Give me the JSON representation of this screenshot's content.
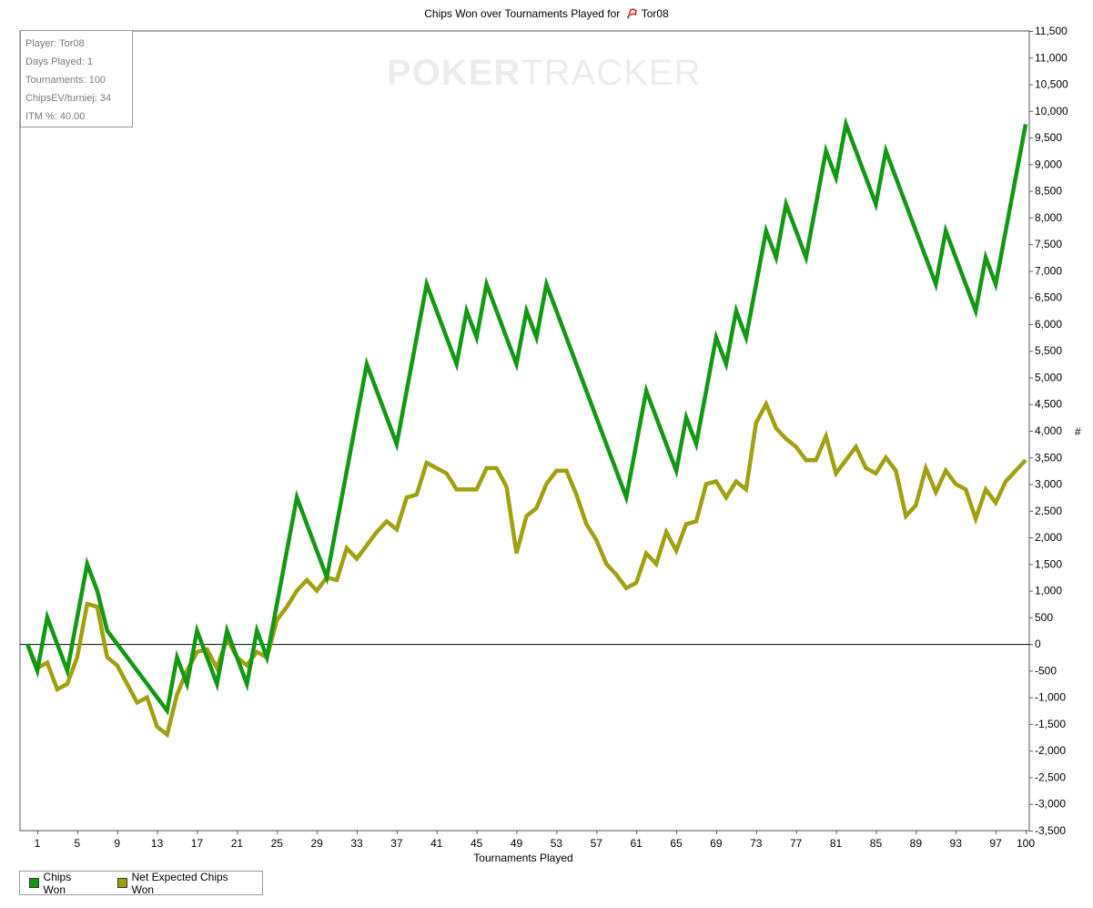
{
  "title": {
    "prefix": "Chips Won over Tournaments Played for",
    "player": "Tor08"
  },
  "stats": [
    "Player: Tor08",
    "Days Played: 1",
    "Tournaments: 100",
    "ChipsEV/turniej: 34",
    "ITM %: 40.00"
  ],
  "watermark": {
    "part1": "POKER",
    "part2": "TRACKER"
  },
  "colors": {
    "chips_won": "#119911",
    "net_expected": "#a0a010",
    "grid": "#e8e8e8",
    "zero_line": "#000000"
  },
  "chart_data": {
    "type": "line",
    "title": "Chips Won over Tournaments Played for Tor08",
    "xlabel": "Tournaments Played",
    "ylabel": "#",
    "xlim": [
      0,
      100
    ],
    "ylim": [
      -3500,
      11500
    ],
    "y_ticks": [
      -3500,
      -3000,
      -2500,
      -2000,
      -1500,
      -1000,
      -500,
      0,
      500,
      1000,
      1500,
      2000,
      2500,
      3000,
      3500,
      4000,
      4500,
      5000,
      5500,
      6000,
      6500,
      7000,
      7500,
      8000,
      8500,
      9000,
      9500,
      10000,
      10500,
      11000,
      11500
    ],
    "y_tick_labels": [
      "-3,500",
      "-3,000",
      "-2,500",
      "-2,000",
      "-1,500",
      "-1,000",
      "-500",
      "0",
      "500",
      "1,000",
      "1,500",
      "2,000",
      "2,500",
      "3,000",
      "3,500",
      "4,000",
      "4,500",
      "5,000",
      "5,500",
      "6,000",
      "6,500",
      "7,000",
      "7,500",
      "8,000",
      "8,500",
      "9,000",
      "9,500",
      "10,000",
      "10,500",
      "11,000",
      "11,500"
    ],
    "x_ticks": [
      1,
      5,
      9,
      13,
      17,
      21,
      25,
      29,
      33,
      37,
      41,
      45,
      49,
      53,
      57,
      61,
      65,
      69,
      73,
      77,
      81,
      85,
      89,
      93,
      97,
      100
    ],
    "grid": true,
    "legend": "bottom-left",
    "series": [
      {
        "name": "Chips Won",
        "x": [
          0,
          1,
          2,
          4,
          6,
          7,
          8,
          14,
          15,
          16,
          17,
          18,
          19,
          20,
          21,
          22,
          23,
          24,
          27,
          30,
          34,
          37,
          40,
          43,
          44,
          45,
          46,
          49,
          50,
          51,
          52,
          60,
          62,
          65,
          66,
          67,
          69,
          70,
          71,
          72,
          74,
          75,
          76,
          78,
          80,
          81,
          82,
          85,
          86,
          91,
          92,
          95,
          96,
          97,
          100
        ],
        "values": [
          0,
          -500,
          500,
          -500,
          1500,
          1000,
          250,
          -1250,
          -250,
          -750,
          250,
          -250,
          -750,
          250,
          -250,
          -750,
          250,
          -250,
          2750,
          1250,
          5250,
          3750,
          6750,
          5250,
          6250,
          5750,
          6750,
          5250,
          6250,
          5750,
          6750,
          2750,
          4750,
          3250,
          4250,
          3750,
          5750,
          5250,
          6250,
          5750,
          7750,
          7250,
          8250,
          7250,
          9250,
          8750,
          9750,
          8250,
          9250,
          6750,
          7750,
          6250,
          7250,
          6750,
          9750
        ]
      },
      {
        "name": "Net Expected Chips Won",
        "x": [
          0,
          1,
          2,
          3,
          4,
          5,
          6,
          7,
          8,
          9,
          10,
          11,
          12,
          13,
          14,
          15,
          16,
          17,
          18,
          19,
          20,
          21,
          22,
          23,
          24,
          25,
          26,
          27,
          28,
          29,
          30,
          31,
          32,
          33,
          34,
          35,
          36,
          37,
          38,
          39,
          40,
          41,
          42,
          43,
          44,
          45,
          46,
          47,
          48,
          49,
          50,
          51,
          52,
          53,
          54,
          55,
          56,
          57,
          58,
          59,
          60,
          61,
          62,
          63,
          64,
          65,
          66,
          67,
          68,
          69,
          70,
          71,
          72,
          73,
          74,
          75,
          76,
          77,
          78,
          79,
          80,
          81,
          82,
          83,
          84,
          85,
          86,
          87,
          88,
          89,
          90,
          91,
          92,
          93,
          94,
          95,
          96,
          97,
          98,
          99,
          100
        ],
        "values": [
          0,
          -450,
          -350,
          -850,
          -750,
          -250,
          750,
          700,
          -250,
          -400,
          -750,
          -1100,
          -1000,
          -1550,
          -1700,
          -950,
          -500,
          -150,
          -100,
          -450,
          100,
          -250,
          -400,
          -150,
          -250,
          450,
          700,
          1000,
          1200,
          1000,
          1250,
          1200,
          1800,
          1600,
          1850,
          2100,
          2300,
          2150,
          2750,
          2800,
          3400,
          3300,
          3200,
          2900,
          2900,
          2900,
          3300,
          3300,
          2950,
          1700,
          2400,
          2550,
          3000,
          3250,
          3250,
          2800,
          2250,
          1950,
          1500,
          1300,
          1050,
          1150,
          1700,
          1500,
          2100,
          1750,
          2250,
          2300,
          3000,
          3050,
          2750,
          3050,
          2900,
          4150,
          4500,
          4050,
          3850,
          3700,
          3450,
          3450,
          3900,
          3200,
          3450,
          3700,
          3300,
          3200,
          3500,
          3250,
          2400,
          2600,
          3300,
          2850,
          3250,
          3000,
          2900,
          2350,
          2900,
          2650,
          3050,
          3250,
          3450
        ]
      }
    ]
  },
  "legend": [
    {
      "label": "Chips Won"
    },
    {
      "label": "Net Expected Chips Won"
    }
  ]
}
